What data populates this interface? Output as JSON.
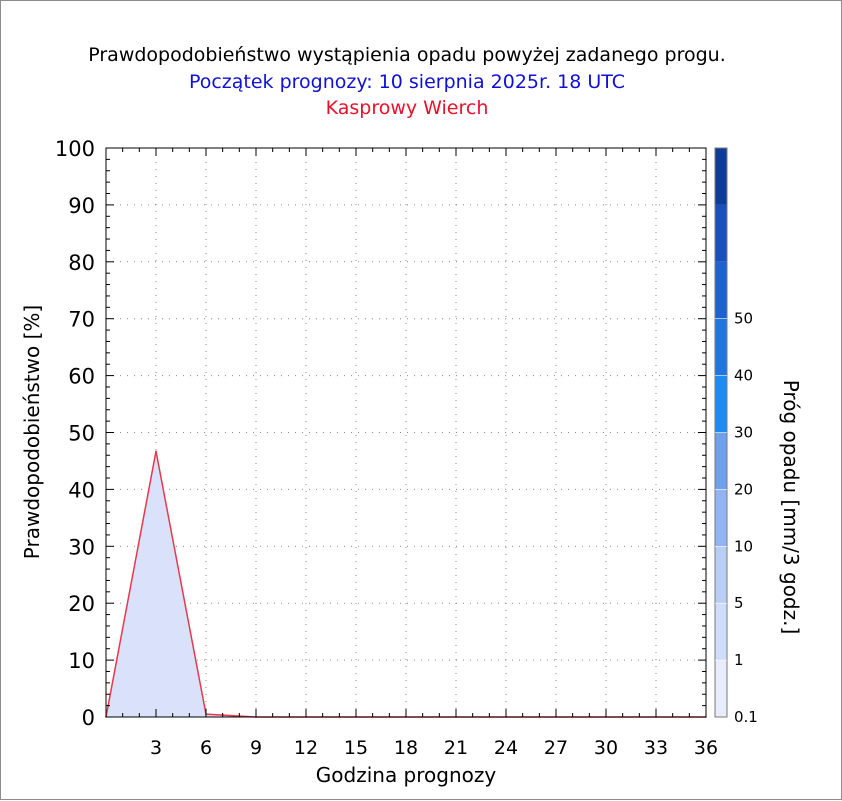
{
  "title": "Prawdopodobieństwo wystąpienia opadu powyżej zadanego progu.",
  "subtitle": "Początek prognozy: 10 sierpnia 2025r. 18 UTC",
  "location": "Kasprowy Wierch",
  "colors": {
    "title": "#000000",
    "subtitle": "#1010d8",
    "location": "#e8102a",
    "line": "#e8384c",
    "fill": "#d9e1fb"
  },
  "chart_data": {
    "type": "area",
    "xlabel": "Godzina prognozy",
    "ylabel": "Prawdopodobieństwo [%]",
    "xlim": [
      0,
      36
    ],
    "ylim": [
      0,
      100
    ],
    "x_ticks": [
      "3",
      "6",
      "9",
      "12",
      "15",
      "18",
      "21",
      "24",
      "27",
      "30",
      "33",
      "36"
    ],
    "y_ticks": [
      "0",
      "10",
      "20",
      "30",
      "40",
      "50",
      "60",
      "70",
      "80",
      "90",
      "100"
    ],
    "grid": true,
    "series": [
      {
        "x": [
          0,
          3,
          6,
          9,
          12,
          15,
          18,
          21,
          24,
          27,
          30,
          33,
          36
        ],
        "values": [
          0,
          46.7,
          0.5,
          0,
          0,
          0,
          0,
          0,
          0,
          0,
          0,
          0,
          0
        ]
      }
    ],
    "colorbar": {
      "label": "Próg opadu [mm/3 godz.]",
      "tick_labels": [
        "0.1",
        "1",
        "5",
        "10",
        "20",
        "30",
        "40",
        "50"
      ],
      "colors": [
        "#e8ecfc",
        "#cfdcfa",
        "#b9cdf6",
        "#93b4f2",
        "#6ea0ee",
        "#1c8cf4",
        "#1f76e0",
        "#1c62d0",
        "#1950be",
        "#0d3c9a"
      ]
    }
  }
}
